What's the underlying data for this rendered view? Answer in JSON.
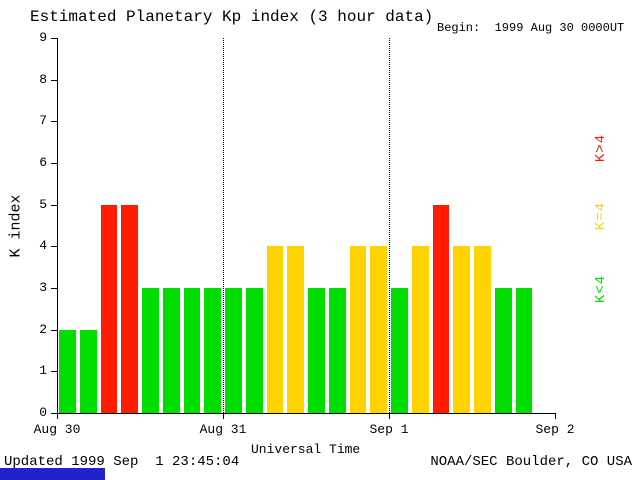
{
  "header": {
    "title": "Estimated Planetary Kp index (3 hour data)",
    "begin_label": "Begin:  1999 Aug 30 0000UT"
  },
  "footer": {
    "updated": "Updated 1999 Sep  1 23:45:04",
    "credit": "NOAA/SEC Boulder, CO USA",
    "status_strip_color": "#2222cc"
  },
  "chart_data": {
    "type": "bar",
    "title": "Estimated Planetary Kp index (3 hour data)",
    "xlabel": "Universal Time",
    "ylabel": "K index",
    "ylim": [
      0,
      9
    ],
    "yticks": [
      0,
      1,
      2,
      3,
      4,
      5,
      6,
      7,
      8,
      9
    ],
    "x_tick_labels": [
      "Aug 30",
      "Aug 31",
      "Sep 1",
      "Sep 2"
    ],
    "slots_per_day": 8,
    "hours_per_slot": 3,
    "values": [
      2,
      2,
      5,
      5,
      3,
      3,
      3,
      3,
      3,
      3,
      4,
      4,
      3,
      3,
      4,
      4,
      3,
      4,
      5,
      4,
      4,
      3,
      3
    ],
    "bar_color_rule": {
      "k_gt_4": "#ff1c00",
      "k_eq_4": "#ffd300",
      "k_lt_4": "#00dd00"
    },
    "legend": [
      {
        "label": "K>4",
        "color": "#ff1c00"
      },
      {
        "label": "K=4",
        "color": "#ffd300"
      },
      {
        "label": "K<4",
        "color": "#00dd00"
      }
    ],
    "grid": "dotted vertical lines at day boundaries",
    "legend_position": "right, rotated 90deg"
  }
}
